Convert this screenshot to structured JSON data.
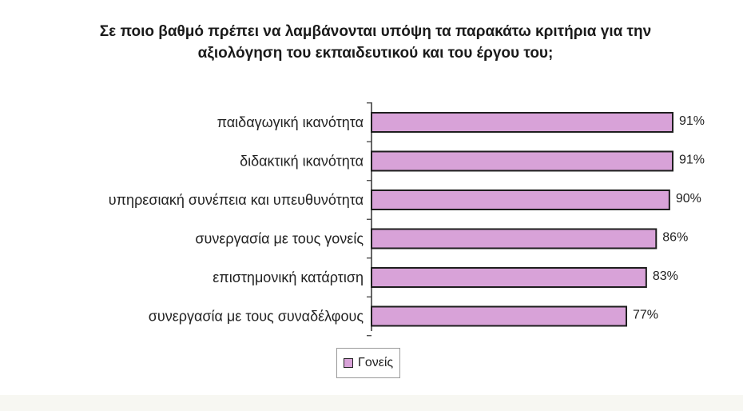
{
  "chart_data": {
    "type": "bar",
    "orientation": "horizontal",
    "title": "Σε ποιο βαθμό πρέπει να λαμβάνονται υπόψη τα παρακάτω κριτήρια για την αξιολόγηση του εκπαιδευτικού και του έργου του;",
    "categories": [
      "παιδαγωγική ικανότητα",
      "διδακτική ικανότητα",
      "υπηρεσιακή συνέπεια και υπευθυνότητα",
      "συνεργασία με τους γονείς",
      "επιστημονική κατάρτιση",
      "συνεργασία με τους συναδέλφους"
    ],
    "series": [
      {
        "name": "Γονείς",
        "values": [
          91,
          91,
          90,
          86,
          83,
          77
        ],
        "color": "#d8a2d8"
      }
    ],
    "value_labels": [
      "91%",
      "91%",
      "90%",
      "86%",
      "83%",
      "77%"
    ],
    "xlim": [
      0,
      100
    ],
    "legend_position": "bottom",
    "grid": false
  }
}
